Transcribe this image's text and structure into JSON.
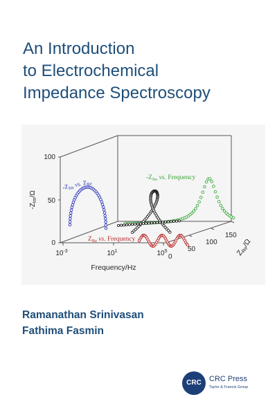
{
  "book": {
    "title_lines": [
      "An Introduction",
      "to Electrochemical",
      "Impedance Spectroscopy"
    ],
    "authors": [
      "Ramanathan Srinivasan",
      "Fathima Fasmin"
    ]
  },
  "figure": {
    "y_axis_title": "-Z",
    "y_axis_sub": "Im",
    "y_axis_unit": "/Ω",
    "y_ticks": [
      "100",
      "50",
      "0"
    ],
    "x_axis_title": "Frequency/Hz",
    "x_ticks": [
      {
        "base": "10",
        "exp": "-3"
      },
      {
        "base": "10",
        "exp": "1"
      },
      {
        "base": "10",
        "exp": "5"
      }
    ],
    "z_axis_title": "Z",
    "z_axis_sub": "Re",
    "z_axis_unit": "/Ω",
    "z_ticks": [
      "0",
      "50",
      "100",
      "150"
    ],
    "label_nyquist": {
      "a": "-Z",
      "a_sub": "Im",
      "vs": " vs. ",
      "b": "Z",
      "b_sub": "Re"
    },
    "label_green": {
      "a": "-Z",
      "a_sub": "Im",
      "vs": " vs. ",
      "b": "Frequency"
    },
    "label_red": {
      "a": "Z",
      "a_sub": "Re",
      "vs": " vs. ",
      "b": "Frequency"
    },
    "colors": {
      "blue": "#2b35b5",
      "green": "#37a537",
      "red": "#b82828",
      "black": "#222222"
    }
  },
  "publisher": {
    "logo_text": "CRC",
    "name": "CRC Press",
    "subtitle": "Taylor & Francis Group"
  }
}
